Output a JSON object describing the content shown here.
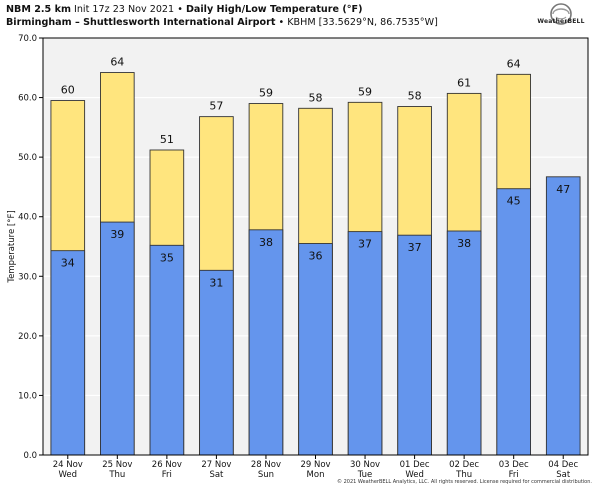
{
  "header": {
    "model_name": "NBM 2.5 km",
    "init_time": "Init 17z 23 Nov 2021",
    "separator": "•",
    "chart_title": "Daily High/Low Temperature (°F)",
    "location_name": "Birmingham – Shuttlesworth International Airport",
    "station_info": "KBHM [33.5629°N, 86.7535°W]"
  },
  "logo": {
    "text": "WeatherBELL"
  },
  "footer": {
    "copyright": "© 2021 WeatherBELL Analytics, LLC. All rights reserved. License required for commercial distribution."
  },
  "colors": {
    "high_fill": "#ffe57e",
    "low_fill": "#6495ed",
    "bar_stroke": "#333333",
    "plot_background": "#f2f2f2",
    "grid": "#ffffff"
  },
  "chart_data": {
    "type": "bar",
    "categories": [
      "24 Nov",
      "25 Nov",
      "26 Nov",
      "27 Nov",
      "28 Nov",
      "29 Nov",
      "30 Nov",
      "01 Dec",
      "02 Dec",
      "03 Dec",
      "04 Dec"
    ],
    "category_days": [
      "Wed",
      "Thu",
      "Fri",
      "Sat",
      "Sun",
      "Mon",
      "Tue",
      "Wed",
      "Thu",
      "Fri",
      "Sat"
    ],
    "series": [
      {
        "values": [
          59.5,
          64.2,
          51.2,
          56.8,
          59.0,
          58.2,
          59.2,
          58.5,
          60.7,
          63.9,
          null
        ],
        "labels": [
          "60",
          "64",
          "51",
          "57",
          "59",
          "58",
          "59",
          "58",
          "61",
          "64",
          ""
        ]
      },
      {
        "values": [
          34.3,
          39.1,
          35.2,
          31.0,
          37.8,
          35.5,
          37.5,
          36.9,
          37.6,
          44.7,
          46.7
        ],
        "labels": [
          "34",
          "39",
          "35",
          "31",
          "38",
          "36",
          "37",
          "37",
          "38",
          "45",
          "47"
        ]
      }
    ],
    "ylabel": "Temperature [°F]",
    "ylim": [
      0,
      70
    ],
    "yticks": [
      "0.0",
      "10.0",
      "20.0",
      "30.0",
      "40.0",
      "50.0",
      "60.0",
      "70.0"
    ],
    "grid": true
  }
}
